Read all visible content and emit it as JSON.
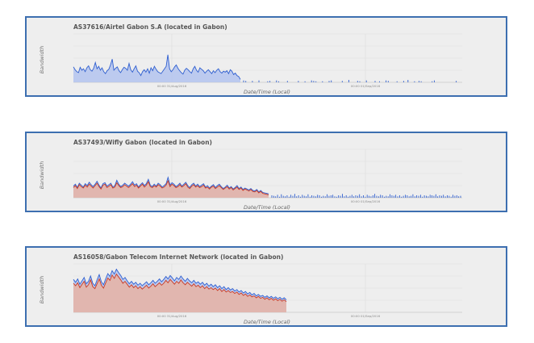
{
  "chart_data": [
    {
      "type": "area",
      "title": "AS37616/Airtel Gabon S.A (located in Gabon)",
      "xlabel": "Date/Time (Local)",
      "ylabel": "Bandwidth",
      "x_ticks": [
        "00:00 31/Aug/2016",
        "00:00 01/Sep/2016"
      ],
      "ylim": [
        0,
        10
      ],
      "grid": true,
      "series": [
        {
          "color": "#2f5fd0",
          "values": [
            3.2,
            2.6,
            2.2,
            2.0,
            3.1,
            2.5,
            2.8,
            2.2,
            3.0,
            3.4,
            2.6,
            2.3,
            2.9,
            4.1,
            2.8,
            3.3,
            2.5,
            3.0,
            2.2,
            1.8,
            2.4,
            2.7,
            3.6,
            4.8,
            2.5,
            2.9,
            3.2,
            2.4,
            2.0,
            2.6,
            3.1,
            2.9,
            2.5,
            3.9,
            2.6,
            2.1,
            2.8,
            3.4,
            2.3,
            2.0,
            1.4,
            2.2,
            2.6,
            2.1,
            2.8,
            1.9,
            3.0,
            2.4,
            3.3,
            2.7,
            2.2,
            2.0,
            1.8,
            2.3,
            2.8,
            3.3,
            5.7,
            2.8,
            2.2,
            2.6,
            3.2,
            3.6,
            2.9,
            2.4,
            2.0,
            1.7,
            2.5,
            2.9,
            2.6,
            2.2,
            1.9,
            2.8,
            3.3,
            2.5,
            2.1,
            3.0,
            2.7,
            2.4,
            1.9,
            2.3,
            2.6,
            2.2,
            1.8,
            2.4,
            2.0,
            2.5,
            2.8,
            2.2,
            1.9,
            2.3,
            2.1,
            2.4,
            1.8,
            2.6,
            2.3,
            1.6,
            1.9,
            1.4,
            1.2,
            0.6
          ],
          "sparse": [
            0.4,
            0.3,
            0,
            0,
            0.3,
            0,
            0,
            0.4,
            0,
            0,
            0,
            0.2,
            0.3,
            0,
            0,
            0.4,
            0.2,
            0,
            0,
            0,
            0.3,
            0,
            0,
            0,
            0,
            0.3,
            0,
            0,
            0.2,
            0,
            0,
            0.4,
            0.3,
            0.2,
            0,
            0,
            0.2,
            0,
            0,
            0.3,
            0.4,
            0,
            0,
            0,
            0,
            0.3,
            0,
            0,
            0.5,
            0,
            0,
            0,
            0.3,
            0.2,
            0,
            0,
            0.4,
            0,
            0,
            0,
            0.3,
            0,
            0.2,
            0,
            0,
            0.4,
            0.3,
            0,
            0,
            0,
            0.2,
            0,
            0,
            0.3,
            0,
            0.5,
            0,
            0,
            0.2,
            0,
            0.3,
            0.2,
            0,
            0,
            0,
            0,
            0.2,
            0.4,
            0,
            0,
            0,
            0,
            0,
            0,
            0,
            0,
            0,
            0.3,
            0,
            0
          ]
        }
      ]
    },
    {
      "type": "area",
      "title": "AS37493/Wifly Gabon (located in Gabon)",
      "xlabel": "Date/Time (Local)",
      "ylabel": "Bandwidth",
      "x_ticks": [
        "00:00 31/Aug/2016",
        "00:00 01/Sep/2016"
      ],
      "ylim": [
        0,
        10
      ],
      "grid": true,
      "series": [
        {
          "color": "#2f5fd0",
          "values": [
            2.4,
            2.8,
            2.1,
            3.0,
            2.6,
            2.2,
            2.9,
            2.5,
            3.2,
            2.7,
            2.3,
            2.8,
            3.4,
            2.6,
            2.0,
            2.9,
            3.1,
            2.4,
            2.7,
            3.0,
            2.2,
            2.5,
            3.6,
            2.8,
            2.3,
            2.6,
            3.0,
            2.7,
            2.4,
            2.8,
            3.3,
            2.6,
            2.9,
            2.2,
            2.7,
            3.1,
            2.5,
            2.9,
            3.8,
            2.6,
            2.3,
            2.8,
            2.4,
            3.0,
            2.7,
            2.2,
            2.5,
            2.9,
            4.2,
            2.6,
            3.1,
            2.8,
            2.3,
            2.6,
            3.0,
            2.4,
            2.8,
            3.2,
            2.5,
            2.1,
            2.7,
            3.0,
            2.4,
            2.8,
            2.3,
            2.6,
            2.9,
            2.2,
            2.5,
            2.0,
            2.4,
            2.7,
            2.1,
            2.5,
            2.8,
            2.3,
            1.9,
            2.2,
            2.6,
            2.0,
            2.3,
            1.8,
            2.1,
            2.5,
            1.9,
            2.2,
            1.7,
            2.0,
            1.8,
            1.6,
            1.9,
            1.5,
            1.4,
            1.7,
            1.2,
            1.5,
            1.1,
            1.0,
            0.9,
            0.8
          ],
          "sparse": [
            0.5,
            0.4,
            0.3,
            0.6,
            0.2,
            0.7,
            0.4,
            0.3,
            0.5,
            0.2,
            0.6,
            0.4,
            0.8,
            0.3,
            0.5,
            0.2,
            0.6,
            0.4,
            0.3,
            0.7,
            0.2,
            0.5,
            0.4,
            0.3,
            0.6,
            0.5,
            0.2,
            0.4,
            0.3,
            0.7,
            0.4,
            0.5,
            0.6,
            0.3,
            0.2,
            0.5,
            0.4,
            0.8,
            0.3,
            0.5,
            0.2,
            0.4,
            0.6,
            0.3,
            0.5,
            0.4,
            0.7,
            0.3,
            0.5,
            0.2,
            0.6,
            0.4,
            0.3,
            0.5,
            0.8,
            0.4,
            0.3,
            0.6,
            0.5,
            0.2,
            0.4,
            0.3,
            0.7,
            0.5,
            0.4,
            0.6,
            0.3,
            0.5,
            0.2,
            0.4,
            0.6,
            0.5,
            0.3,
            0.4,
            0.7,
            0.3,
            0.5,
            0.4,
            0.6,
            0.2,
            0.5,
            0.4,
            0.3,
            0.6,
            0.5,
            0.4,
            0.7,
            0.3,
            0.5,
            0.4,
            0.6,
            0.3,
            0.5,
            0.4,
            0.2,
            0.6,
            0.4,
            0.5,
            0.3,
            0.4
          ]
        },
        {
          "color": "#cc3a22",
          "values": [
            2.1,
            2.5,
            1.9,
            2.7,
            2.3,
            2.0,
            2.6,
            2.2,
            2.8,
            2.4,
            2.0,
            2.5,
            3.0,
            2.3,
            1.8,
            2.6,
            2.8,
            2.1,
            2.4,
            2.7,
            2.0,
            2.2,
            3.1,
            2.5,
            2.1,
            2.3,
            2.7,
            2.4,
            2.1,
            2.5,
            2.9,
            2.3,
            2.6,
            2.0,
            2.4,
            2.8,
            2.2,
            2.6,
            3.3,
            2.3,
            2.1,
            2.5,
            2.2,
            2.7,
            2.4,
            2.0,
            2.2,
            2.6,
            3.5,
            2.3,
            2.8,
            2.5,
            2.1,
            2.3,
            2.7,
            2.2,
            2.5,
            2.9,
            2.2,
            1.9,
            2.4,
            2.7,
            2.2,
            2.5,
            2.1,
            2.3,
            2.6,
            2.0,
            2.2,
            1.8,
            2.2,
            2.4,
            1.9,
            2.2,
            2.5,
            2.1,
            1.7,
            2.0,
            2.3,
            1.8,
            2.1,
            1.6,
            1.9,
            2.2,
            1.7,
            2.0,
            1.5,
            1.8,
            1.6,
            1.4,
            1.7,
            1.3,
            1.2,
            1.5,
            1.0,
            1.3,
            0.9,
            0.8,
            0.7,
            0.6
          ]
        }
      ]
    },
    {
      "type": "area",
      "title": "AS16058/Gabon Telecom Internet Network (located in Gabon)",
      "xlabel": "Date/Time (Local)",
      "ylabel": "Bandwidth",
      "x_ticks": [
        "00:00 31/Aug/2016",
        "00:00 01/Sep/2016"
      ],
      "ylim": [
        0,
        10
      ],
      "grid": true,
      "series": [
        {
          "color": "#2f5fd0",
          "values": [
            6.8,
            6.2,
            6.9,
            5.8,
            6.5,
            7.2,
            5.9,
            6.4,
            7.5,
            6.0,
            5.5,
            6.7,
            7.8,
            6.3,
            5.7,
            6.9,
            8.0,
            7.4,
            8.6,
            7.9,
            8.9,
            8.2,
            7.6,
            6.8,
            7.2,
            6.5,
            5.9,
            6.4,
            5.8,
            6.2,
            5.6,
            6.0,
            5.5,
            5.9,
            6.3,
            5.7,
            6.1,
            6.6,
            6.0,
            6.4,
            6.9,
            6.3,
            6.8,
            7.4,
            6.9,
            7.6,
            7.1,
            6.5,
            7.2,
            6.8,
            7.5,
            6.9,
            6.4,
            7.0,
            6.5,
            6.1,
            6.6,
            6.0,
            6.3,
            5.8,
            6.2,
            5.6,
            6.0,
            5.4,
            5.8,
            5.3,
            5.7,
            5.1,
            5.5,
            4.9,
            5.3,
            4.7,
            5.1,
            4.6,
            4.9,
            4.4,
            4.7,
            4.2,
            4.5,
            4.0,
            4.3,
            3.8,
            4.1,
            3.6,
            3.9,
            3.4,
            3.7,
            3.3,
            3.5,
            3.1,
            3.4,
            3.0,
            3.3,
            2.9,
            3.2,
            2.8,
            3.1,
            2.7,
            3.0,
            2.6
          ]
        },
        {
          "color": "#cc3a22",
          "values": [
            6.0,
            5.5,
            6.1,
            5.1,
            5.8,
            6.4,
            5.2,
            5.7,
            6.7,
            5.3,
            4.9,
            5.9,
            6.9,
            5.6,
            5.0,
            6.1,
            7.1,
            6.6,
            7.7,
            7.0,
            7.9,
            7.3,
            6.7,
            6.0,
            6.4,
            5.8,
            5.2,
            5.7,
            5.1,
            5.5,
            4.9,
            5.3,
            4.8,
            5.2,
            5.6,
            5.0,
            5.4,
            5.9,
            5.3,
            5.7,
            6.1,
            5.6,
            6.0,
            6.6,
            6.1,
            6.8,
            6.3,
            5.8,
            6.4,
            6.0,
            6.7,
            6.1,
            5.7,
            6.2,
            5.8,
            5.4,
            5.9,
            5.3,
            5.6,
            5.1,
            5.5,
            4.9,
            5.3,
            4.8,
            5.1,
            4.7,
            5.0,
            4.5,
            4.9,
            4.3,
            4.7,
            4.2,
            4.5,
            4.1,
            4.3,
            3.9,
            4.2,
            3.7,
            4.0,
            3.5,
            3.8,
            3.3,
            3.6,
            3.2,
            3.4,
            3.0,
            3.3,
            2.9,
            3.1,
            2.7,
            3.0,
            2.6,
            2.9,
            2.5,
            2.8,
            2.4,
            2.7,
            2.3,
            2.6,
            2.2
          ]
        }
      ]
    }
  ]
}
